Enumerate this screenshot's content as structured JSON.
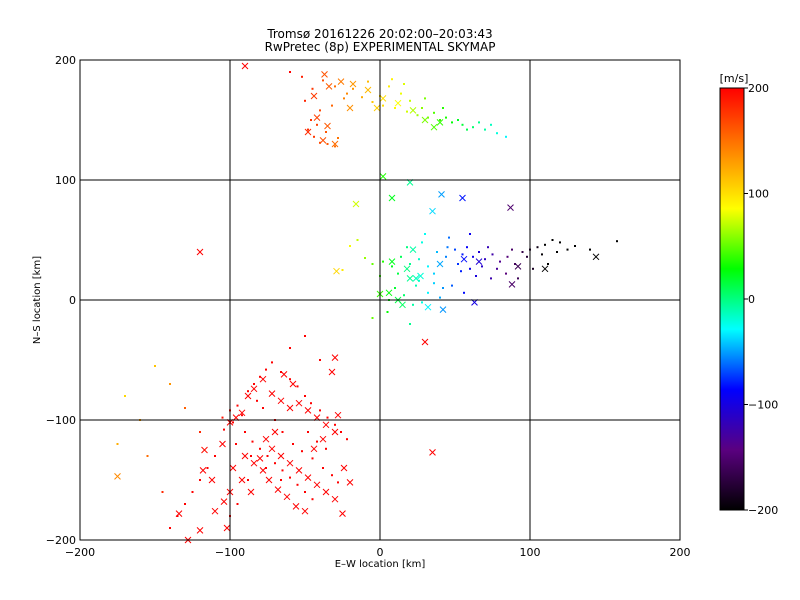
{
  "chart_data": {
    "type": "scatter",
    "title": "Tromsø 20161226 20:02:00–20:03:43",
    "subtitle": "RwPretec (8p) EXPERIMENTAL SKYMAP",
    "xlabel": "E–W location [km]",
    "ylabel": "N–S location [km]",
    "xlim": [
      -200,
      200
    ],
    "ylim": [
      -200,
      200
    ],
    "x_ticks": [
      -200,
      -100,
      0,
      100,
      200
    ],
    "y_ticks": [
      -200,
      -100,
      0,
      100,
      200
    ],
    "grid": true,
    "colorbar": {
      "label": "[m/s]",
      "range": [
        -200,
        200
      ],
      "ticks": [
        -200,
        -100,
        0,
        100,
        200
      ],
      "colors": [
        "#000000",
        "#5a0080",
        "#0000ff",
        "#00ffff",
        "#00ff00",
        "#ffff00",
        "#ff8000",
        "#ff0000"
      ]
    },
    "clusters": [
      {
        "marker": "dot",
        "x_range": [
          -60,
          85
        ],
        "y_range": [
          125,
          190
        ],
        "points": [
          [
            -52,
            186
          ],
          [
            -45,
            176
          ],
          [
            -38,
            183
          ],
          [
            -30,
            178
          ],
          [
            -22,
            172
          ],
          [
            -12,
            169
          ],
          [
            -5,
            165
          ],
          [
            2,
            162
          ],
          [
            10,
            160
          ],
          [
            18,
            157
          ],
          [
            25,
            154
          ],
          [
            32,
            152
          ],
          [
            40,
            150
          ],
          [
            48,
            148
          ],
          [
            55,
            146
          ],
          [
            62,
            144
          ],
          [
            70,
            142
          ],
          [
            78,
            139
          ],
          [
            -48,
            142
          ],
          [
            -44,
            136
          ],
          [
            -40,
            131
          ],
          [
            -35,
            130
          ],
          [
            -30,
            128
          ],
          [
            -28,
            135
          ],
          [
            -46,
            150
          ],
          [
            -40,
            158
          ],
          [
            -32,
            162
          ],
          [
            -24,
            168
          ],
          [
            -18,
            176
          ],
          [
            -8,
            182
          ],
          [
            6,
            178
          ],
          [
            14,
            172
          ],
          [
            20,
            166
          ],
          [
            28,
            160
          ],
          [
            36,
            156
          ],
          [
            44,
            152
          ],
          [
            52,
            150
          ],
          [
            58,
            142
          ],
          [
            66,
            148
          ],
          [
            74,
            146
          ],
          [
            -60,
            190
          ],
          [
            -50,
            166
          ],
          [
            -42,
            146
          ],
          [
            -36,
            140
          ],
          [
            0,
            170
          ],
          [
            8,
            184
          ],
          [
            16,
            180
          ],
          [
            30,
            168
          ],
          [
            42,
            160
          ],
          [
            84,
            136
          ]
        ]
      },
      {
        "marker": "cross",
        "x_range": [
          -50,
          45
        ],
        "y_range": [
          125,
          195
        ],
        "points": [
          [
            -37,
            188
          ],
          [
            -34,
            178
          ],
          [
            -26,
            182
          ],
          [
            -44,
            170
          ],
          [
            -48,
            140
          ],
          [
            -38,
            133
          ],
          [
            -30,
            130
          ],
          [
            -42,
            152
          ],
          [
            -18,
            180
          ],
          [
            -8,
            175
          ],
          [
            2,
            168
          ],
          [
            12,
            164
          ],
          [
            22,
            158
          ],
          [
            30,
            150
          ],
          [
            40,
            148
          ],
          [
            -90,
            195
          ],
          [
            -35,
            145
          ],
          [
            -20,
            160
          ],
          [
            -2,
            160
          ],
          [
            36,
            144
          ]
        ]
      },
      {
        "marker": "dot",
        "x_range": [
          -25,
          160
        ],
        "y_range": [
          -25,
          60
        ],
        "points": [
          [
            -10,
            35
          ],
          [
            -5,
            30
          ],
          [
            2,
            32
          ],
          [
            8,
            28
          ],
          [
            14,
            36
          ],
          [
            20,
            30
          ],
          [
            26,
            34
          ],
          [
            32,
            28
          ],
          [
            38,
            40
          ],
          [
            44,
            36
          ],
          [
            50,
            42
          ],
          [
            55,
            38
          ],
          [
            58,
            44
          ],
          [
            62,
            36
          ],
          [
            66,
            40
          ],
          [
            70,
            34
          ],
          [
            75,
            38
          ],
          [
            80,
            32
          ],
          [
            85,
            36
          ],
          [
            90,
            30
          ],
          [
            95,
            40
          ],
          [
            100,
            42
          ],
          [
            105,
            44
          ],
          [
            110,
            46
          ],
          [
            115,
            50
          ],
          [
            120,
            48
          ],
          [
            130,
            45
          ],
          [
            140,
            42
          ],
          [
            158,
            49
          ],
          [
            45,
            44
          ],
          [
            52,
            30
          ],
          [
            60,
            26
          ],
          [
            68,
            28
          ],
          [
            72,
            44
          ],
          [
            78,
            26
          ],
          [
            88,
            42
          ],
          [
            98,
            36
          ],
          [
            108,
            38
          ],
          [
            118,
            40
          ],
          [
            125,
            42
          ],
          [
            10,
            10
          ],
          [
            16,
            4
          ],
          [
            22,
            -4
          ],
          [
            28,
            -2
          ],
          [
            6,
            0
          ],
          [
            0,
            20
          ],
          [
            12,
            22
          ],
          [
            26,
            16
          ],
          [
            36,
            22
          ],
          [
            42,
            10
          ],
          [
            48,
            12
          ],
          [
            56,
            6
          ],
          [
            -15,
            50
          ],
          [
            -20,
            45
          ],
          [
            30,
            55
          ],
          [
            60,
            55
          ],
          [
            -25,
            25
          ],
          [
            5,
            -10
          ],
          [
            20,
            -20
          ],
          [
            -5,
            -15
          ],
          [
            24,
            12
          ],
          [
            32,
            6
          ],
          [
            40,
            2
          ],
          [
            54,
            24
          ],
          [
            64,
            20
          ],
          [
            74,
            18
          ],
          [
            84,
            22
          ],
          [
            92,
            18
          ],
          [
            102,
            26
          ],
          [
            112,
            30
          ],
          [
            18,
            44
          ],
          [
            28,
            48
          ],
          [
            46,
            52
          ],
          [
            36,
            14
          ]
        ]
      },
      {
        "marker": "cross",
        "x_range": [
          -30,
          145
        ],
        "y_range": [
          -35,
          105
        ],
        "points": [
          [
            2,
            103
          ],
          [
            20,
            98
          ],
          [
            8,
            85
          ],
          [
            41,
            88
          ],
          [
            55,
            85
          ],
          [
            87,
            77
          ],
          [
            -16,
            80
          ],
          [
            35,
            74
          ],
          [
            -29,
            24
          ],
          [
            0,
            5
          ],
          [
            6,
            6
          ],
          [
            20,
            18
          ],
          [
            24,
            18
          ],
          [
            27,
            20
          ],
          [
            15,
            -4
          ],
          [
            12,
            0
          ],
          [
            32,
            -6
          ],
          [
            30,
            -35
          ],
          [
            42,
            -8
          ],
          [
            63,
            -2
          ],
          [
            88,
            13
          ],
          [
            110,
            26
          ],
          [
            144,
            36
          ],
          [
            22,
            42
          ],
          [
            8,
            32
          ],
          [
            18,
            26
          ],
          [
            40,
            30
          ],
          [
            56,
            34
          ],
          [
            66,
            32
          ],
          [
            92,
            28
          ]
        ]
      },
      {
        "marker": "dot",
        "x_range": [
          -180,
          -20
        ],
        "y_range": [
          -200,
          -20
        ],
        "points": [
          [
            -175,
            -120
          ],
          [
            -120,
            -110
          ],
          [
            -105,
            -98
          ],
          [
            -100,
            -92
          ],
          [
            -95,
            -88
          ],
          [
            -88,
            -76
          ],
          [
            -84,
            -70
          ],
          [
            -80,
            -64
          ],
          [
            -76,
            -58
          ],
          [
            -72,
            -52
          ],
          [
            -66,
            -60
          ],
          [
            -60,
            -66
          ],
          [
            -55,
            -72
          ],
          [
            -50,
            -80
          ],
          [
            -46,
            -86
          ],
          [
            -40,
            -92
          ],
          [
            -35,
            -98
          ],
          [
            -30,
            -104
          ],
          [
            -26,
            -110
          ],
          [
            -22,
            -116
          ],
          [
            -90,
            -110
          ],
          [
            -85,
            -118
          ],
          [
            -80,
            -124
          ],
          [
            -75,
            -130
          ],
          [
            -70,
            -136
          ],
          [
            -65,
            -142
          ],
          [
            -60,
            -148
          ],
          [
            -55,
            -154
          ],
          [
            -50,
            -160
          ],
          [
            -45,
            -166
          ],
          [
            -110,
            -130
          ],
          [
            -115,
            -140
          ],
          [
            -120,
            -150
          ],
          [
            -125,
            -160
          ],
          [
            -130,
            -170
          ],
          [
            -135,
            -180
          ],
          [
            -140,
            -190
          ],
          [
            -100,
            -180
          ],
          [
            -95,
            -170
          ],
          [
            -88,
            -150
          ],
          [
            -150,
            -55
          ],
          [
            -140,
            -70
          ],
          [
            -130,
            -90
          ],
          [
            -160,
            -100
          ],
          [
            -170,
            -80
          ],
          [
            -155,
            -130
          ],
          [
            -145,
            -160
          ],
          [
            -60,
            -40
          ],
          [
            -50,
            -30
          ],
          [
            -40,
            -50
          ],
          [
            -70,
            -100
          ],
          [
            -65,
            -110
          ],
          [
            -58,
            -120
          ],
          [
            -52,
            -126
          ],
          [
            -45,
            -132
          ],
          [
            -38,
            -140
          ],
          [
            -32,
            -146
          ],
          [
            -28,
            -152
          ],
          [
            -78,
            -90
          ],
          [
            -82,
            -84
          ],
          [
            -92,
            -96
          ],
          [
            -98,
            -102
          ],
          [
            -104,
            -108
          ],
          [
            -96,
            -120
          ],
          [
            -86,
            -130
          ],
          [
            -76,
            -140
          ],
          [
            -66,
            -150
          ],
          [
            -48,
            -110
          ],
          [
            -42,
            -118
          ],
          [
            -36,
            -124
          ]
        ]
      },
      {
        "marker": "cross",
        "x_range": [
          -175,
          -25
        ],
        "y_range": [
          -205,
          -30
        ],
        "points": [
          [
            -175,
            -147
          ],
          [
            -117,
            -125
          ],
          [
            -105,
            -120
          ],
          [
            -100,
            -102
          ],
          [
            -96,
            -98
          ],
          [
            -92,
            -94
          ],
          [
            -88,
            -80
          ],
          [
            -84,
            -74
          ],
          [
            -78,
            -66
          ],
          [
            -72,
            -78
          ],
          [
            -66,
            -84
          ],
          [
            -60,
            -90
          ],
          [
            -54,
            -86
          ],
          [
            -48,
            -92
          ],
          [
            -42,
            -98
          ],
          [
            -36,
            -104
          ],
          [
            -30,
            -110
          ],
          [
            -90,
            -130
          ],
          [
            -84,
            -136
          ],
          [
            -78,
            -142
          ],
          [
            -72,
            -124
          ],
          [
            -66,
            -130
          ],
          [
            -60,
            -136
          ],
          [
            -54,
            -142
          ],
          [
            -48,
            -148
          ],
          [
            -42,
            -154
          ],
          [
            -36,
            -160
          ],
          [
            -30,
            -166
          ],
          [
            -100,
            -160
          ],
          [
            -104,
            -168
          ],
          [
            -110,
            -176
          ],
          [
            -120,
            -192
          ],
          [
            -128,
            -200
          ],
          [
            -134,
            -178
          ],
          [
            -118,
            -142
          ],
          [
            -112,
            -150
          ],
          [
            -20,
            -152
          ],
          [
            -25,
            -178
          ],
          [
            -30,
            -48
          ],
          [
            -32,
            -60
          ],
          [
            -80,
            -132
          ],
          [
            -74,
            -150
          ],
          [
            -68,
            -158
          ],
          [
            -62,
            -164
          ],
          [
            -56,
            -172
          ],
          [
            -50,
            -176
          ],
          [
            -44,
            -124
          ],
          [
            -38,
            -116
          ],
          [
            -24,
            -140
          ],
          [
            -28,
            -96
          ],
          [
            -58,
            -70
          ],
          [
            -64,
            -62
          ],
          [
            -86,
            -160
          ],
          [
            -92,
            -150
          ],
          [
            -98,
            -140
          ],
          [
            -102,
            -190
          ],
          [
            -70,
            -110
          ],
          [
            -76,
            -116
          ],
          [
            35,
            -127
          ],
          [
            -120,
            40
          ]
        ]
      }
    ]
  }
}
